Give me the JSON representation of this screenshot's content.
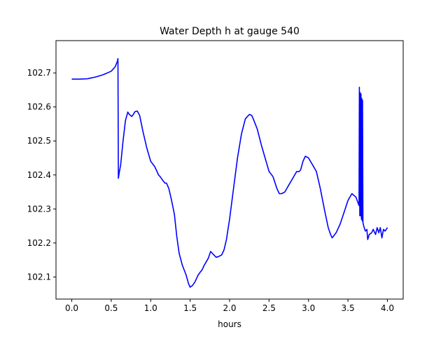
{
  "chart_data": {
    "type": "line",
    "title": "Water Depth h at gauge 540",
    "xlabel": "hours",
    "ylabel": "",
    "xlim": [
      -0.2,
      4.2
    ],
    "ylim": [
      102.035,
      102.795
    ],
    "xticks": [
      0.0,
      0.5,
      1.0,
      1.5,
      2.0,
      2.5,
      3.0,
      3.5,
      4.0
    ],
    "xtick_labels": [
      "0.0",
      "0.5",
      "1.0",
      "1.5",
      "2.0",
      "2.5",
      "3.0",
      "3.5",
      "4.0"
    ],
    "yticks": [
      102.1,
      102.2,
      102.3,
      102.4,
      102.5,
      102.6,
      102.7
    ],
    "ytick_labels": [
      "102.1",
      "102.2",
      "102.3",
      "102.4",
      "102.5",
      "102.6",
      "102.7"
    ],
    "grid": false,
    "legend": false,
    "series": [
      {
        "color": "#0000ff",
        "x": [
          0.0,
          0.1,
          0.2,
          0.3,
          0.4,
          0.5,
          0.55,
          0.58,
          0.585,
          0.59,
          0.6,
          0.62,
          0.65,
          0.68,
          0.71,
          0.73,
          0.76,
          0.78,
          0.8,
          0.83,
          0.86,
          0.9,
          0.95,
          1.0,
          1.05,
          1.08,
          1.1,
          1.12,
          1.15,
          1.18,
          1.2,
          1.23,
          1.26,
          1.3,
          1.33,
          1.36,
          1.4,
          1.45,
          1.48,
          1.5,
          1.53,
          1.56,
          1.6,
          1.63,
          1.65,
          1.68,
          1.7,
          1.73,
          1.76,
          1.8,
          1.83,
          1.86,
          1.9,
          1.93,
          1.96,
          1.98,
          2.0,
          2.05,
          2.1,
          2.15,
          2.2,
          2.25,
          2.28,
          2.3,
          2.35,
          2.4,
          2.45,
          2.5,
          2.55,
          2.6,
          2.63,
          2.66,
          2.7,
          2.75,
          2.8,
          2.85,
          2.88,
          2.9,
          2.93,
          2.96,
          3.0,
          3.05,
          3.1,
          3.15,
          3.2,
          3.25,
          3.28,
          3.3,
          3.35,
          3.4,
          3.45,
          3.5,
          3.55,
          3.6,
          3.64,
          3.645,
          3.65,
          3.655,
          3.66,
          3.665,
          3.67,
          3.675,
          3.68,
          3.685,
          3.69,
          3.7,
          3.72,
          3.74,
          3.75,
          3.77,
          3.8,
          3.82,
          3.85,
          3.87,
          3.89,
          3.91,
          3.93,
          3.95,
          3.97,
          4.0
        ],
        "y": [
          102.682,
          102.682,
          102.683,
          102.688,
          102.695,
          102.705,
          102.718,
          102.735,
          102.742,
          102.39,
          102.405,
          102.43,
          102.5,
          102.56,
          102.585,
          102.578,
          102.572,
          102.578,
          102.586,
          102.588,
          102.575,
          102.53,
          102.48,
          102.44,
          102.425,
          102.41,
          102.4,
          102.395,
          102.385,
          102.376,
          102.376,
          102.36,
          102.33,
          102.285,
          102.22,
          102.17,
          102.135,
          102.105,
          102.08,
          102.07,
          102.075,
          102.085,
          102.105,
          102.115,
          102.12,
          102.135,
          102.143,
          102.155,
          102.175,
          102.165,
          102.158,
          102.16,
          102.165,
          102.18,
          102.21,
          102.24,
          102.27,
          102.36,
          102.45,
          102.52,
          102.565,
          102.578,
          102.575,
          102.565,
          102.535,
          102.49,
          102.45,
          102.41,
          102.395,
          102.36,
          102.345,
          102.345,
          102.35,
          102.37,
          102.39,
          102.41,
          102.41,
          102.415,
          102.44,
          102.455,
          102.45,
          102.43,
          102.41,
          102.36,
          102.3,
          102.245,
          102.225,
          102.215,
          102.23,
          102.255,
          102.29,
          102.325,
          102.345,
          102.335,
          102.31,
          102.658,
          102.28,
          102.642,
          102.28,
          102.638,
          102.27,
          102.625,
          102.265,
          102.62,
          102.26,
          102.25,
          102.235,
          102.24,
          102.21,
          102.225,
          102.23,
          102.24,
          102.225,
          102.245,
          102.23,
          102.245,
          102.215,
          102.24,
          102.235,
          102.245
        ]
      }
    ]
  }
}
